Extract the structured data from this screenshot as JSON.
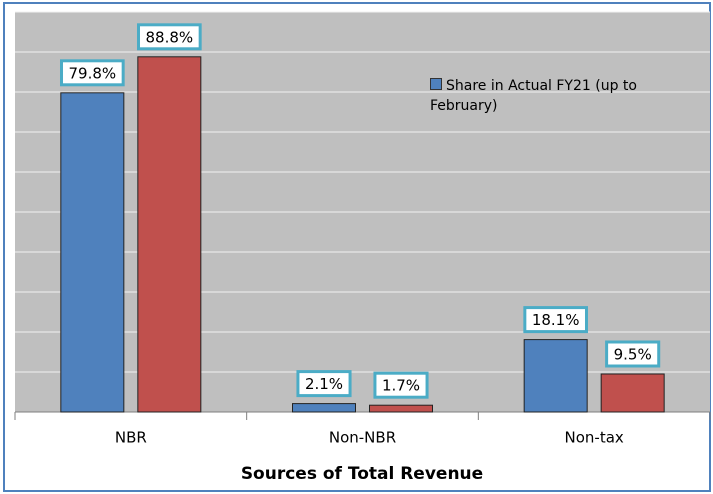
{
  "chart_data": {
    "type": "bar",
    "x_label": "Sources of Total Revenue",
    "categories": [
      "NBR",
      "Non-NBR",
      "Non-tax"
    ],
    "series": [
      {
        "name": "Share in Actual FY21 (up to February)",
        "color": "#4f81bd",
        "values": [
          79.8,
          2.1,
          18.1
        ],
        "value_labels": [
          "79.8%",
          "2.1%",
          "18.1%"
        ]
      },
      {
        "color": "#c0504d",
        "values": [
          88.8,
          1.7,
          9.5
        ],
        "value_labels": [
          "88.8%",
          "1.7%",
          "9.5%"
        ]
      }
    ],
    "ylim": [
      0,
      100
    ],
    "yticks": [
      0,
      10,
      20,
      30,
      40,
      50,
      60,
      70,
      80,
      90,
      100
    ],
    "grid": true
  }
}
